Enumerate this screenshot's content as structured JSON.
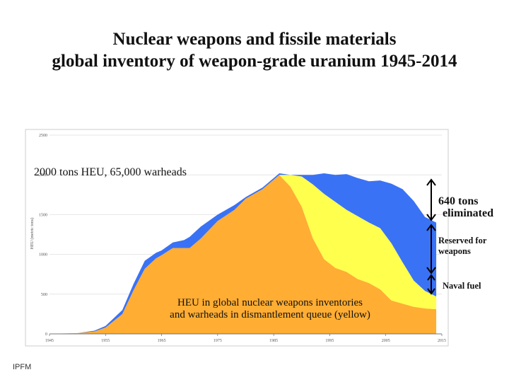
{
  "title_line1": "Nuclear weapons and fissile materials",
  "title_line2": "global inventory of weapon-grade uranium 1945-2014",
  "footer": "IPFM",
  "colors": {
    "weapons": "#ffad33",
    "reserved": "#ffff4d",
    "naval": "#3a72f5",
    "grid": "#e6e6e6",
    "axis": "#555555"
  },
  "chart_data": {
    "type": "area",
    "stacked": true,
    "title": "",
    "xlabel": "",
    "ylabel": "HEU (metric tons)",
    "xlim": [
      1945,
      2015
    ],
    "ylim": [
      0,
      2500
    ],
    "x_ticks": [
      1945,
      1955,
      1965,
      1975,
      1985,
      1995,
      2005,
      2015
    ],
    "y_ticks": [
      0,
      500,
      1000,
      1500,
      2000,
      2500
    ],
    "grid": true,
    "x": [
      1945,
      1950,
      1953,
      1955,
      1958,
      1960,
      1962,
      1964,
      1965,
      1967,
      1969,
      1970,
      1972,
      1975,
      1978,
      1980,
      1983,
      1986,
      1988,
      1990,
      1992,
      1994,
      1996,
      1998,
      2000,
      2002,
      2004,
      2006,
      2008,
      2010,
      2012,
      2014
    ],
    "series": [
      {
        "name": "HEU in global nuclear weapons inventories and warheads in dismantlement queue (yellow)",
        "values": [
          0,
          10,
          30,
          80,
          250,
          550,
          820,
          950,
          990,
          1080,
          1080,
          1080,
          1200,
          1420,
          1560,
          1700,
          1820,
          2000,
          1850,
          1600,
          1200,
          940,
          830,
          780,
          690,
          640,
          560,
          420,
          380,
          340,
          320,
          310
        ]
      },
      {
        "name": "Reserved for weapons",
        "values": [
          0,
          0,
          0,
          0,
          0,
          0,
          0,
          0,
          0,
          0,
          0,
          0,
          0,
          0,
          0,
          0,
          0,
          0,
          150,
          380,
          680,
          820,
          830,
          780,
          790,
          760,
          770,
          720,
          520,
          330,
          220,
          160
        ]
      },
      {
        "name": "Naval fuel",
        "values": [
          0,
          0,
          10,
          20,
          50,
          80,
          100,
          70,
          60,
          70,
          100,
          140,
          150,
          80,
          60,
          20,
          20,
          20,
          0,
          20,
          120,
          260,
          340,
          450,
          480,
          520,
          600,
          750,
          920,
          1000,
          930,
          930
        ]
      }
    ],
    "annotations": [
      {
        "id": "peak",
        "text": "2000 tons HEU, 65,000 warheads"
      },
      {
        "id": "elim1",
        "text": "640 tons"
      },
      {
        "id": "elim2",
        "text": "eliminated"
      },
      {
        "id": "res1",
        "text": "Reserved for"
      },
      {
        "id": "res2",
        "text": "weapons"
      },
      {
        "id": "naval",
        "text": "Naval fuel"
      },
      {
        "id": "inner1",
        "text": "HEU in global nuclear weapons inventories"
      },
      {
        "id": "inner2",
        "text": "and warheads in dismantlement queue (yellow)"
      }
    ]
  }
}
